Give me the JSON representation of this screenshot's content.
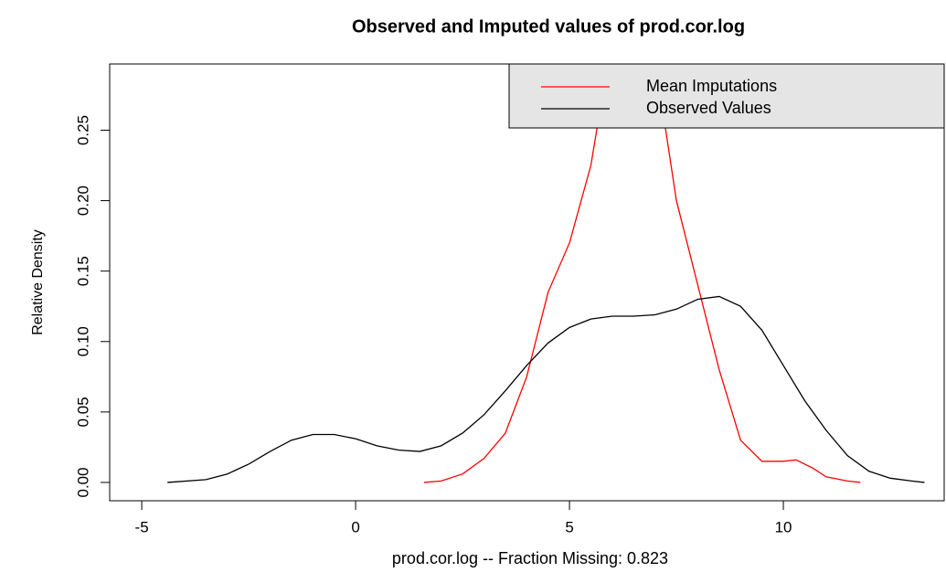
{
  "chart_data": {
    "type": "line",
    "title": "Observed and Imputed values of prod.cor.log",
    "x_label": "prod.cor.log  -- Fraction Missing: 0.823",
    "y_label": "Relative Density",
    "xlim": [
      -5.75,
      13.76
    ],
    "ylim": [
      -0.013,
      0.297
    ],
    "xticks": [
      -5,
      0,
      5,
      10
    ],
    "yticks": [
      {
        "value": 0,
        "label": "0.00"
      },
      {
        "value": 0.05,
        "label": "0.05"
      },
      {
        "value": 0.1,
        "label": "0.10"
      },
      {
        "value": 0.15,
        "label": "0.15"
      },
      {
        "value": 0.2,
        "label": "0.20"
      },
      {
        "value": 0.25,
        "label": "0.25"
      }
    ],
    "legend": "top right",
    "series": [
      {
        "name": "Mean Imputations",
        "color": "#ff0000",
        "x": [
          1.6,
          2,
          2.5,
          3,
          3.5,
          4,
          4.5,
          5,
          5.5,
          5.8,
          6,
          6.5,
          7,
          7.2,
          7.5,
          8,
          8.5,
          9,
          9.5,
          10,
          10.3,
          10.7,
          11,
          11.5,
          11.8
        ],
        "values": [
          0,
          0.001,
          0.006,
          0.017,
          0.035,
          0.075,
          0.135,
          0.17,
          0.225,
          0.28,
          0.31,
          0.33,
          0.29,
          0.26,
          0.2,
          0.14,
          0.08,
          0.03,
          0.015,
          0.015,
          0.016,
          0.01,
          0.004,
          0.001,
          0
        ]
      },
      {
        "name": "Observed Values",
        "color": "#000000",
        "x": [
          -4.4,
          -3.5,
          -3,
          -2.5,
          -2,
          -1.5,
          -1,
          -0.5,
          0,
          0.5,
          1,
          1.5,
          2,
          2.5,
          3,
          3.5,
          4,
          4.5,
          5,
          5.5,
          6,
          6.5,
          7,
          7.5,
          8,
          8.5,
          9,
          9.5,
          10,
          10.5,
          11,
          11.5,
          12,
          12.5,
          13,
          13.3
        ],
        "values": [
          0,
          0.002,
          0.006,
          0.013,
          0.022,
          0.03,
          0.034,
          0.034,
          0.031,
          0.026,
          0.023,
          0.022,
          0.026,
          0.035,
          0.048,
          0.065,
          0.083,
          0.099,
          0.11,
          0.116,
          0.118,
          0.118,
          0.119,
          0.123,
          0.13,
          0.132,
          0.125,
          0.108,
          0.083,
          0.058,
          0.037,
          0.019,
          0.008,
          0.003,
          0.001,
          0
        ]
      }
    ]
  }
}
